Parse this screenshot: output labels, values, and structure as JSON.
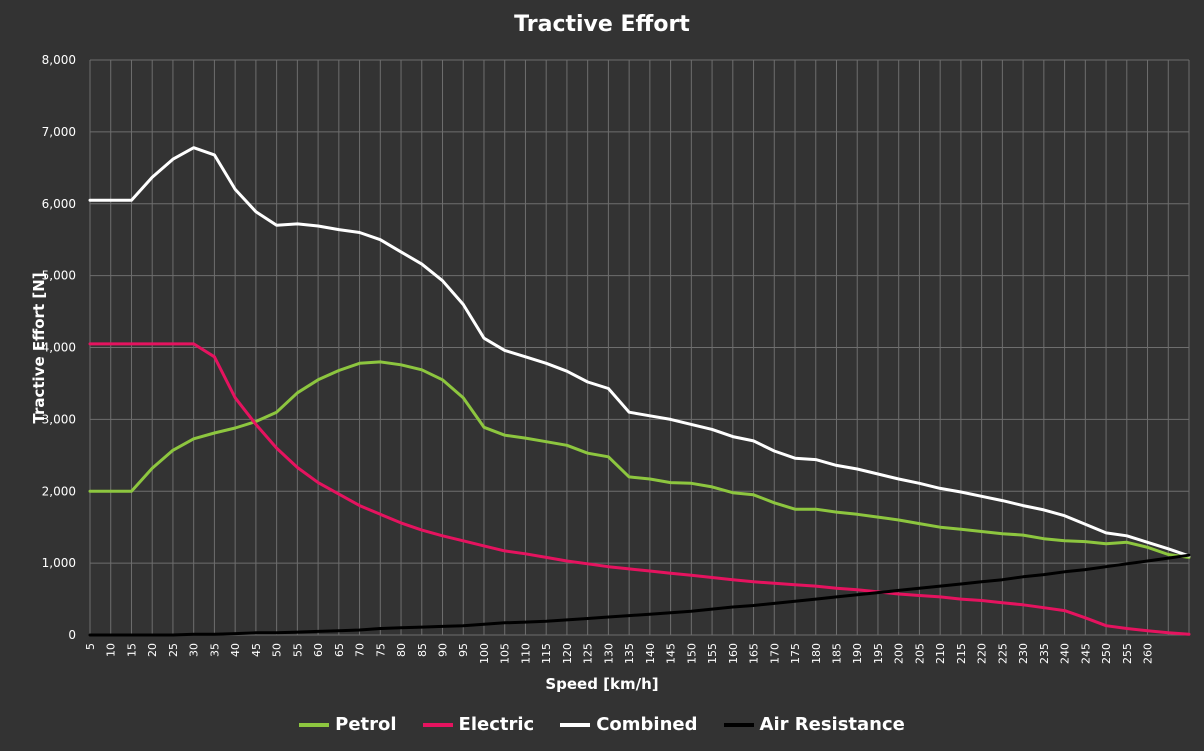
{
  "chart_data": {
    "type": "line",
    "title": "Tractive Effort",
    "xlabel": "Speed [km/h]",
    "ylabel": "Tractive Effort [N]",
    "ylim": [
      0,
      8000
    ],
    "yticks": [
      "0",
      "1,000",
      "2,000",
      "3,000",
      "4,000",
      "5,000",
      "6,000",
      "7,000",
      "8,000"
    ],
    "x": [
      5,
      10,
      15,
      20,
      25,
      30,
      35,
      40,
      45,
      50,
      55,
      60,
      65,
      70,
      75,
      80,
      85,
      90,
      95,
      100,
      105,
      110,
      115,
      120,
      125,
      130,
      135,
      140,
      145,
      150,
      155,
      160,
      165,
      170,
      175,
      180,
      185,
      190,
      195,
      200,
      205,
      210,
      215,
      220,
      225,
      230,
      235,
      240,
      245,
      250,
      255,
      260,
      265,
      270
    ],
    "xtick_labels": [
      "5",
      "10",
      "15",
      "20",
      "25",
      "30",
      "35",
      "40",
      "45",
      "50",
      "55",
      "60",
      "65",
      "70",
      "75",
      "80",
      "85",
      "90",
      "95",
      "100",
      "105",
      "110",
      "115",
      "120",
      "125",
      "130",
      "135",
      "140",
      "145",
      "150",
      "155",
      "160",
      "165",
      "170",
      "175",
      "180",
      "185",
      "190",
      "195",
      "200",
      "205",
      "210",
      "215",
      "220",
      "225",
      "230",
      "235",
      "240",
      "245",
      "250",
      "255",
      "260",
      "",
      ""
    ],
    "grid": true,
    "legend_position": "bottom",
    "series": [
      {
        "name": "Petrol",
        "color": "#8dc63f",
        "values": [
          2000,
          2000,
          2000,
          2320,
          2570,
          2730,
          2810,
          2880,
          2970,
          3100,
          3370,
          3550,
          3680,
          3780,
          3800,
          3760,
          3690,
          3550,
          3300,
          2890,
          2780,
          2740,
          2690,
          2640,
          2530,
          2480,
          2200,
          2170,
          2120,
          2110,
          2060,
          1980,
          1950,
          1840,
          1750,
          1750,
          1710,
          1680,
          1640,
          1600,
          1550,
          1500,
          1470,
          1440,
          1410,
          1390,
          1340,
          1310,
          1300,
          1270,
          1290,
          1220,
          1120,
          1080
        ]
      },
      {
        "name": "Electric",
        "color": "#e5135f",
        "values": [
          4050,
          4050,
          4050,
          4050,
          4050,
          4050,
          3870,
          3300,
          2930,
          2600,
          2330,
          2120,
          1960,
          1800,
          1680,
          1560,
          1460,
          1380,
          1310,
          1240,
          1170,
          1130,
          1080,
          1030,
          990,
          950,
          920,
          890,
          860,
          830,
          800,
          770,
          740,
          720,
          700,
          680,
          650,
          630,
          600,
          570,
          550,
          530,
          500,
          480,
          450,
          420,
          380,
          340,
          240,
          130,
          90,
          60,
          30,
          10
        ]
      },
      {
        "name": "Combined",
        "color": "#ffffff",
        "values": [
          6050,
          6050,
          6050,
          6370,
          6620,
          6780,
          6680,
          6200,
          5890,
          5700,
          5720,
          5690,
          5640,
          5600,
          5500,
          5330,
          5160,
          4930,
          4600,
          4130,
          3960,
          3870,
          3780,
          3670,
          3520,
          3430,
          3100,
          3050,
          3000,
          2930,
          2860,
          2760,
          2700,
          2560,
          2460,
          2440,
          2360,
          2310,
          2240,
          2170,
          2110,
          2040,
          1990,
          1930,
          1870,
          1800,
          1740,
          1660,
          1540,
          1420,
          1380,
          1290,
          1200,
          1100
        ]
      },
      {
        "name": "Air Resistance",
        "color": "#000000",
        "values": [
          0,
          0,
          0,
          0,
          0,
          10,
          10,
          20,
          30,
          30,
          40,
          50,
          60,
          70,
          90,
          100,
          110,
          120,
          130,
          150,
          170,
          180,
          190,
          210,
          230,
          250,
          270,
          290,
          310,
          330,
          360,
          390,
          410,
          440,
          470,
          500,
          530,
          560,
          590,
          620,
          650,
          680,
          710,
          740,
          770,
          810,
          840,
          880,
          910,
          950,
          990,
          1030,
          1070,
          1110
        ]
      }
    ]
  }
}
